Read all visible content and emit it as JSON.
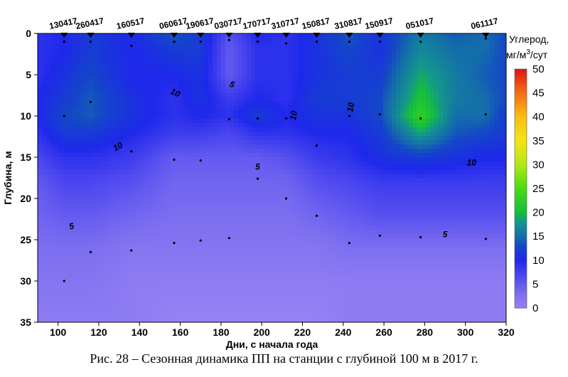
{
  "caption": "Рис. 28 – Сезонная динамика ПП на станции с глубиной 100 м в 2017 г.",
  "chart_data": {
    "type": "heatmap",
    "xlabel": "Дни, с начала года",
    "ylabel": "Глубина, м",
    "xlim": [
      90,
      320
    ],
    "ylim": [
      35,
      0
    ],
    "xticks": [
      100,
      120,
      140,
      160,
      180,
      200,
      220,
      240,
      260,
      280,
      300,
      320
    ],
    "yticks": [
      0,
      5,
      10,
      15,
      20,
      25,
      30,
      35
    ],
    "colorbar": {
      "title_line1": "Углерод,",
      "title_line2_pre": "мг/м",
      "title_line2_sup": "3",
      "title_line2_post": "/сут",
      "ticks": [
        0,
        5,
        10,
        15,
        20,
        25,
        30,
        35,
        40,
        45,
        50
      ],
      "range": [
        0,
        50
      ]
    },
    "stations": [
      {
        "label": "130417",
        "day": 103
      },
      {
        "label": "260417",
        "day": 116
      },
      {
        "label": "160517",
        "day": 136
      },
      {
        "label": "060617",
        "day": 157
      },
      {
        "label": "190617",
        "day": 170
      },
      {
        "label": "030717",
        "day": 184
      },
      {
        "label": "170717",
        "day": 198
      },
      {
        "label": "310717",
        "day": 212
      },
      {
        "label": "150817",
        "day": 227
      },
      {
        "label": "310817",
        "day": 243
      },
      {
        "label": "150917",
        "day": 258
      },
      {
        "label": "051017",
        "day": 278
      },
      {
        "label": "061117",
        "day": 310
      }
    ],
    "sample_points": [
      [
        103,
        1
      ],
      [
        103,
        10
      ],
      [
        103,
        30
      ],
      [
        116,
        1
      ],
      [
        116,
        8.3
      ],
      [
        116,
        26.5
      ],
      [
        136,
        1.5
      ],
      [
        136,
        14.3
      ],
      [
        136,
        26.3
      ],
      [
        157,
        1
      ],
      [
        157,
        15.3
      ],
      [
        157,
        25.4
      ],
      [
        170,
        1
      ],
      [
        170,
        15.4
      ],
      [
        170,
        25.1
      ],
      [
        184,
        0.8
      ],
      [
        184,
        10.4
      ],
      [
        184,
        24.8
      ],
      [
        198,
        1
      ],
      [
        198,
        10.3
      ],
      [
        198,
        17.6
      ],
      [
        212,
        1.2
      ],
      [
        212,
        10.3
      ],
      [
        212,
        20
      ],
      [
        227,
        1
      ],
      [
        227,
        13.6
      ],
      [
        227,
        22.1
      ],
      [
        243,
        1
      ],
      [
        243,
        10
      ],
      [
        243,
        25.4
      ],
      [
        258,
        1
      ],
      [
        258,
        9.8
      ],
      [
        258,
        24.5
      ],
      [
        278,
        1
      ],
      [
        278,
        10.3
      ],
      [
        278,
        24.7
      ],
      [
        310,
        0.6
      ],
      [
        310,
        9.8
      ],
      [
        310,
        24.9
      ]
    ],
    "grid_values": {
      "depths": [
        0,
        2,
        5,
        8,
        10,
        12,
        15,
        18,
        22,
        26,
        30,
        35
      ],
      "days": [
        90,
        103,
        116,
        136,
        157,
        170,
        184,
        198,
        212,
        227,
        243,
        258,
        278,
        295,
        310,
        320
      ],
      "values": [
        [
          9,
          10,
          12,
          10,
          14,
          12,
          6,
          10,
          9,
          11,
          14,
          11,
          16,
          14,
          15,
          13
        ],
        [
          9,
          10,
          12,
          10,
          12,
          12,
          5,
          9,
          9,
          11,
          13,
          11,
          17,
          15,
          15,
          13
        ],
        [
          9,
          11,
          13,
          10,
          10,
          11,
          5,
          9,
          9,
          11,
          12,
          12,
          19,
          16,
          14,
          13
        ],
        [
          10,
          12,
          14,
          11,
          9,
          11,
          8,
          10,
          9,
          12,
          12,
          13,
          21,
          16,
          15,
          13
        ],
        [
          10,
          13,
          14,
          11,
          9,
          10,
          9,
          12,
          10,
          11,
          11,
          13,
          23,
          15,
          15,
          12
        ],
        [
          9,
          12,
          12,
          10,
          8,
          8,
          7,
          9,
          9,
          10,
          10,
          12,
          19,
          14,
          13,
          12
        ],
        [
          7,
          9,
          9,
          8,
          5,
          5,
          5,
          5,
          6,
          8,
          9,
          11,
          12,
          11,
          10,
          10
        ],
        [
          5,
          7,
          7,
          6,
          4,
          4,
          4,
          4,
          4,
          6,
          7,
          8,
          8,
          8,
          8,
          8
        ],
        [
          4,
          5,
          5,
          4,
          3,
          3,
          3,
          3,
          3,
          4,
          5,
          6,
          6,
          6,
          6,
          6
        ],
        [
          3,
          3,
          3,
          2,
          2,
          2,
          2,
          2,
          2,
          2,
          3,
          3,
          3,
          3,
          3,
          3
        ],
        [
          2,
          2,
          2,
          1,
          1,
          1,
          1,
          1,
          1,
          1,
          1,
          1,
          1,
          1,
          1,
          1
        ],
        [
          1,
          1,
          1,
          1,
          0,
          0,
          0,
          0,
          0,
          0,
          1,
          1,
          1,
          1,
          1,
          1
        ]
      ]
    },
    "contour_labels": [
      {
        "text": "10",
        "day": 157,
        "depth": 7.5,
        "angle": 25
      },
      {
        "text": "5",
        "day": 185,
        "depth": 6.5,
        "angle": 20
      },
      {
        "text": "10",
        "day": 130,
        "depth": 14,
        "angle": -30
      },
      {
        "text": "10",
        "day": 217,
        "depth": 10,
        "angle": -80
      },
      {
        "text": "10",
        "day": 245,
        "depth": 9,
        "angle": -80
      },
      {
        "text": "5",
        "day": 198,
        "depth": 16.5,
        "angle": 0
      },
      {
        "text": "5",
        "day": 107,
        "depth": 23.7,
        "angle": -15
      },
      {
        "text": "5",
        "day": 290,
        "depth": 24.7,
        "angle": 0
      },
      {
        "text": "10",
        "day": 303,
        "depth": 16,
        "angle": 0
      }
    ]
  }
}
